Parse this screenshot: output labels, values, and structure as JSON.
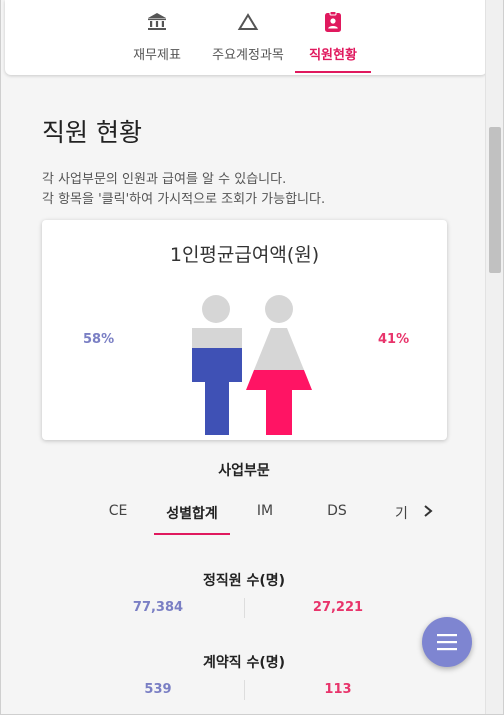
{
  "top_tabs": [
    {
      "label": "재무제표",
      "icon": "bank-icon"
    },
    {
      "label": "주요계정과목",
      "icon": "triangle-icon"
    },
    {
      "label": "직원현황",
      "icon": "id-badge-icon",
      "active": true
    }
  ],
  "page": {
    "title": "직원 현황",
    "description_line1": "각 사업부문의 인원과 급여를 알 수 있습니다.",
    "description_line2": "각 항목을 '클릭'하여 가시적으로 조회가 가능합니다."
  },
  "chart_card": {
    "title": "1인평균급여액(원)",
    "male_pct": "58%",
    "female_pct": "41%"
  },
  "chart_data": {
    "type": "bar",
    "categories": [
      "남",
      "여"
    ],
    "values": [
      58,
      41
    ],
    "unit": "%",
    "title": "1인평균급여액(원)",
    "colors": {
      "male": "#3f51b5",
      "female": "#ff1464",
      "empty": "#d6d6d6"
    }
  },
  "section": {
    "label": "사업부문",
    "tabs": [
      "CE",
      "성별합계",
      "IM",
      "DS",
      "기"
    ],
    "active_tab": "성별합계"
  },
  "stats": [
    {
      "label": "정직원 수(명)",
      "male": "77,384",
      "female": "27,221"
    },
    {
      "label": "계약직 수(명)",
      "male": "539",
      "female": "113"
    }
  ],
  "colors": {
    "accent": "#e0195e",
    "male": "#7a7fc4",
    "female": "#e8346b",
    "fab": "#7e85d1"
  }
}
